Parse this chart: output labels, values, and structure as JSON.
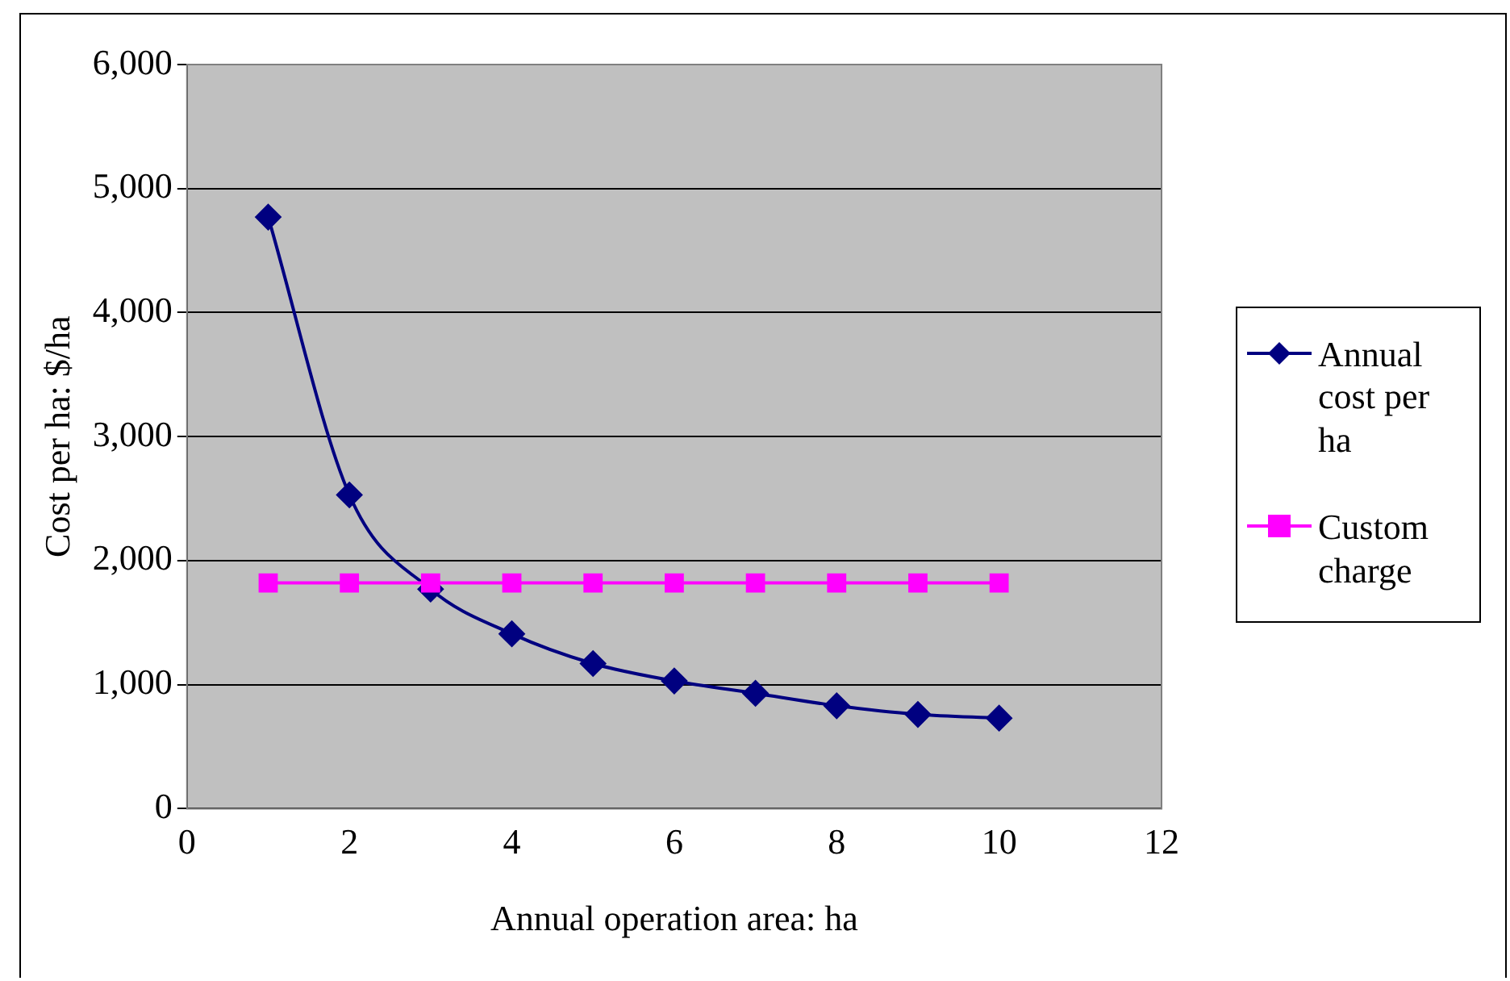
{
  "chart_data": {
    "type": "line",
    "xlabel": "Annual operation area: ha",
    "ylabel": "Cost per ha: $/ha",
    "x": [
      1,
      2,
      3,
      4,
      5,
      6,
      7,
      8,
      9,
      10
    ],
    "series": [
      {
        "name": "Annual cost per ha",
        "color": "#000080",
        "marker": "diamond",
        "values": [
          4770,
          2530,
          1770,
          1410,
          1170,
          1030,
          930,
          830,
          760,
          730
        ]
      },
      {
        "name": "Custom charge",
        "color": "#ff00ff",
        "marker": "square",
        "values": [
          1820,
          1820,
          1820,
          1820,
          1820,
          1820,
          1820,
          1820,
          1820,
          1820
        ]
      }
    ],
    "xlim": [
      0,
      12
    ],
    "xticks": [
      0,
      2,
      4,
      6,
      8,
      10,
      12
    ],
    "ylim": [
      0,
      6000
    ],
    "yticks": [
      0,
      {
        "value": 1000,
        "label": "1,000"
      },
      {
        "value": 2000,
        "label": "2,000"
      },
      {
        "value": 3000,
        "label": "3,000"
      },
      {
        "value": 4000,
        "label": "4,000"
      },
      {
        "value": 5000,
        "label": "5,000"
      },
      {
        "value": 6000,
        "label": "6,000"
      }
    ],
    "grid": "y",
    "legend": "right",
    "line_style": "solid"
  }
}
